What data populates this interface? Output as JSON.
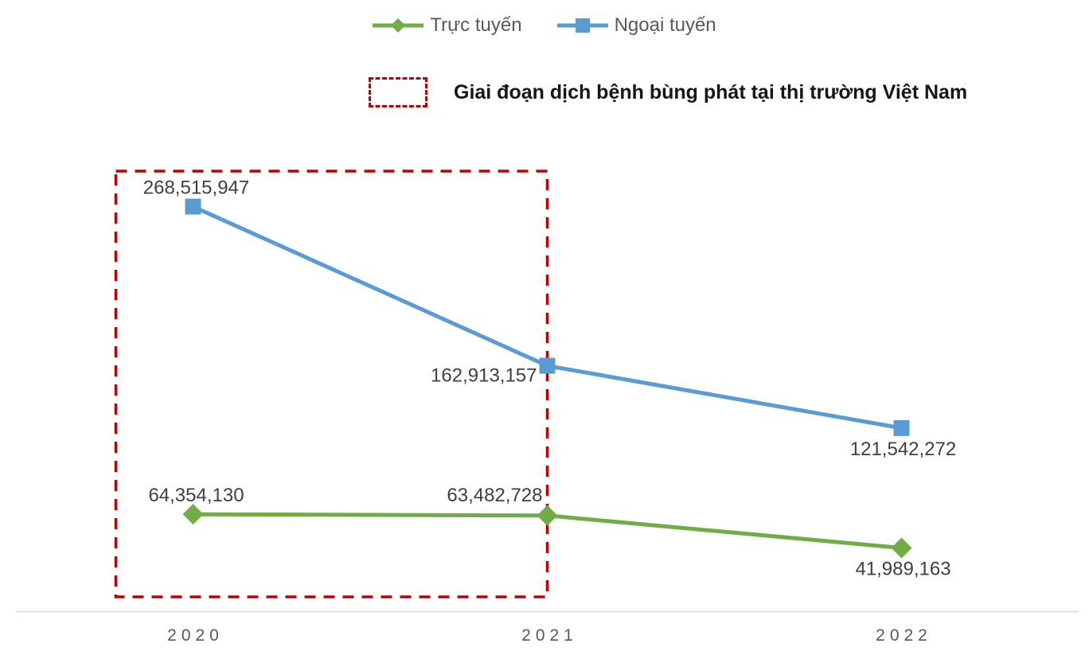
{
  "chart_data": {
    "type": "line",
    "title": "",
    "xlabel": "",
    "ylabel": "",
    "grid": false,
    "legend_position": "top-center",
    "categories": [
      "2020",
      "2021",
      "2022"
    ],
    "ylim": [
      0,
      300000000
    ],
    "series": [
      {
        "name": "Ngoại tuyến",
        "color": "#5B9BD5",
        "marker": "square",
        "values": [
          268515947,
          162913157,
          121542272
        ],
        "labels": [
          "268,515,947",
          "162,913,157",
          "121,542,272"
        ],
        "label_positions": [
          "above",
          "left",
          "below"
        ]
      },
      {
        "name": "Trực tuyến",
        "color": "#70AD47",
        "marker": "diamond",
        "values": [
          64354130,
          63482728,
          41989163
        ],
        "labels": [
          "64,354,130",
          "63,482,728",
          "41,989,163"
        ],
        "label_positions": [
          "above",
          "above-left",
          "below"
        ]
      }
    ],
    "annotation": {
      "label": "Giai đoạn dịch bệnh bùng phát tại thị trường Việt Nam",
      "color": "#C00000",
      "shape": "dashed-rectangle",
      "covers_categories": [
        "2020",
        "2021"
      ]
    }
  },
  "legend": {
    "items": [
      {
        "label": "Trực tuyến",
        "color": "#70AD47",
        "marker": "diamond"
      },
      {
        "label": "Ngoại tuyến",
        "color": "#5B9BD5",
        "marker": "square"
      }
    ]
  },
  "colors": {
    "background": "#FFFFFF",
    "axis_line": "#D9D9D9",
    "tick_text": "#595959",
    "label_text": "#404040",
    "legend_text": "#595959",
    "annotation": "#C00000"
  }
}
